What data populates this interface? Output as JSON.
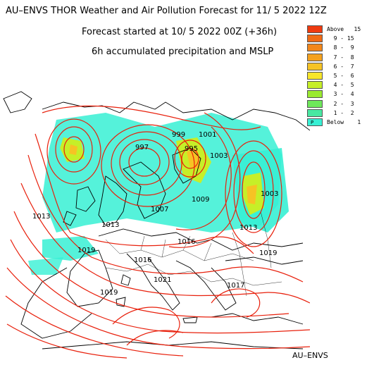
{
  "header": {
    "title": "AU–ENVS THOR Weather and Air Pollution Forecast for 11/ 5 2022  12Z",
    "forecast_start": "Forecast started at 10/ 5 2022  00Z (+36h)",
    "field": "6h accumulated precipitation and MSLP"
  },
  "legend": {
    "entries": [
      {
        "label": "Above   15",
        "color": "#ee3a10"
      },
      {
        "label": "  9 - 15",
        "color": "#f06a14"
      },
      {
        "label": "  8 -  9",
        "color": "#f2861a"
      },
      {
        "label": "  7 -  8",
        "color": "#f4a11e"
      },
      {
        "label": "  6 -  7",
        "color": "#f6c324"
      },
      {
        "label": "  5 -  6",
        "color": "#f8e62a"
      },
      {
        "label": "  4 -  5",
        "color": "#c6ef28"
      },
      {
        "label": "  3 -  4",
        "color": "#9aea30"
      },
      {
        "label": "  2 -  3",
        "color": "#6ee85a"
      },
      {
        "label": "  1 -  2",
        "color": "#48e8a2"
      },
      {
        "label": "Below    1",
        "color": "#37f0d4",
        "mark": "P"
      }
    ]
  },
  "isobar_labels": [
    "999",
    "1001",
    "997",
    "995",
    "1003",
    "1009",
    "1007",
    "1003",
    "1013",
    "1013",
    "1019",
    "1016",
    "1019",
    "1016",
    "1021",
    "1019",
    "1017",
    "1013"
  ],
  "credit": "AU–ENVS",
  "colors": {
    "isobar": "#e8200c",
    "coast": "#000000",
    "precip_light": "#37f0d4",
    "precip_mid": "#f6c324"
  }
}
